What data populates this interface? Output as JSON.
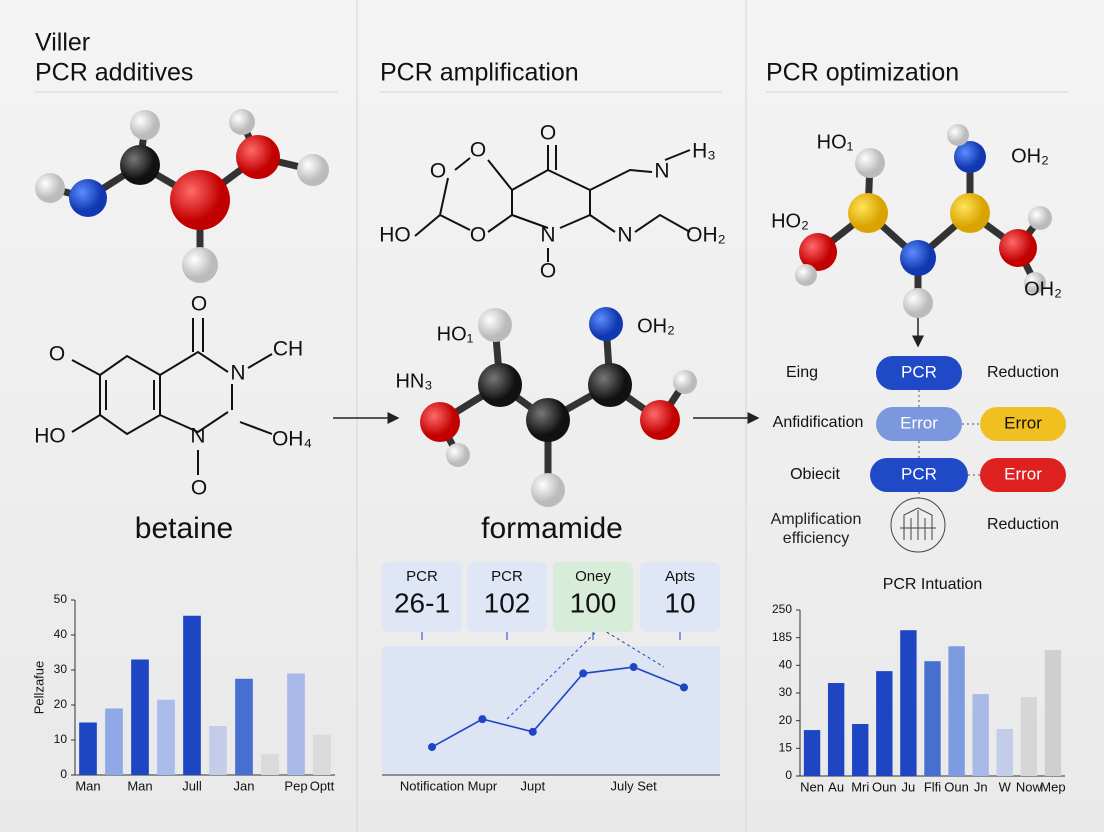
{
  "panels": [
    {
      "title": [
        "Viller",
        "PCR additives"
      ],
      "structure_labels": [
        "O",
        "N",
        "CH",
        "O",
        "HO",
        "N",
        "OH₄",
        "O"
      ],
      "name": "betaine"
    },
    {
      "title": "PCR amplification",
      "structure_labels": [
        "O",
        "O",
        "O",
        "HO",
        "O",
        "N",
        "O",
        "N",
        "N",
        "H₃",
        "OH₂"
      ],
      "molecule_labels": [
        "HO₁",
        "OH₂",
        "HN₃"
      ],
      "name": "formamide",
      "cards": [
        {
          "label": "PCR",
          "value": "26-1"
        },
        {
          "label": "PCR",
          "value": "102"
        },
        {
          "label": "Oney",
          "value": "100"
        },
        {
          "label": "Apts",
          "value": "10"
        }
      ]
    },
    {
      "title": "PCR optimization",
      "molecule_labels": [
        "HO₁",
        "OH₂",
        "HO₂",
        "OH₂"
      ],
      "flow": {
        "row_labels": [
          "Eing",
          "Anfidification",
          "Obiecit",
          "Amplification efficiency"
        ],
        "pills": [
          "PCR",
          "Error",
          "PCR"
        ],
        "side_pills": [
          "Error",
          "Error"
        ],
        "side_labels": [
          "Reduction",
          "Reduction"
        ]
      }
    }
  ],
  "chart_data": [
    {
      "type": "bar",
      "y_label": "Pellzafue",
      "categories": [
        "Man",
        null,
        "Man",
        null,
        "Jull",
        null,
        "Jan",
        null,
        "Pep",
        "Optt"
      ],
      "values": [
        15,
        19,
        33,
        21.5,
        45.5,
        14,
        27.5,
        6,
        29,
        11.5
      ],
      "colors": [
        "#1e46c2",
        "#8fa8e6",
        "#1e46c2",
        "#a9bbea",
        "#1e46c2",
        "#c3cdea",
        "#4670d0",
        "#dadada",
        "#a9b9e7",
        "#dadada"
      ],
      "ylim": [
        0,
        50
      ],
      "yticks": [
        0,
        10,
        20,
        30,
        40,
        50
      ]
    },
    {
      "type": "line",
      "categories": [
        "Notification",
        "Mupr",
        "Jupt",
        null,
        "July Set",
        null
      ],
      "values": [
        22,
        44,
        34,
        80,
        85,
        69
      ],
      "color": "#1e46c2",
      "ylim": [
        0,
        100
      ]
    },
    {
      "type": "bar",
      "title": "PCR Intuation",
      "categories": [
        "Nen",
        "Au",
        "Mri",
        "Oun",
        "Ju",
        "Flfi",
        "Oun",
        "Jn",
        "W",
        "Now",
        "Mep"
      ],
      "values": [
        16.6,
        33.6,
        18.8,
        37.9,
        52.7,
        41.5,
        46.9,
        29.6,
        17,
        28.5,
        45.5
      ],
      "colors": [
        "#1e46c2",
        "#1e46c2",
        "#1e46c2",
        "#1e46c2",
        "#1e46c2",
        "#4670d0",
        "#7d9be0",
        "#a9b9e7",
        "#c3cdea",
        "#d6d6d6",
        "#cfcfcf"
      ],
      "ylim": [
        0,
        60
      ],
      "yticks": [
        0,
        {
          "value": 10,
          "label": "15"
        },
        20,
        30,
        40,
        {
          "value": 50,
          "label": "185"
        },
        {
          "value": 60,
          "label": "250"
        }
      ]
    }
  ]
}
